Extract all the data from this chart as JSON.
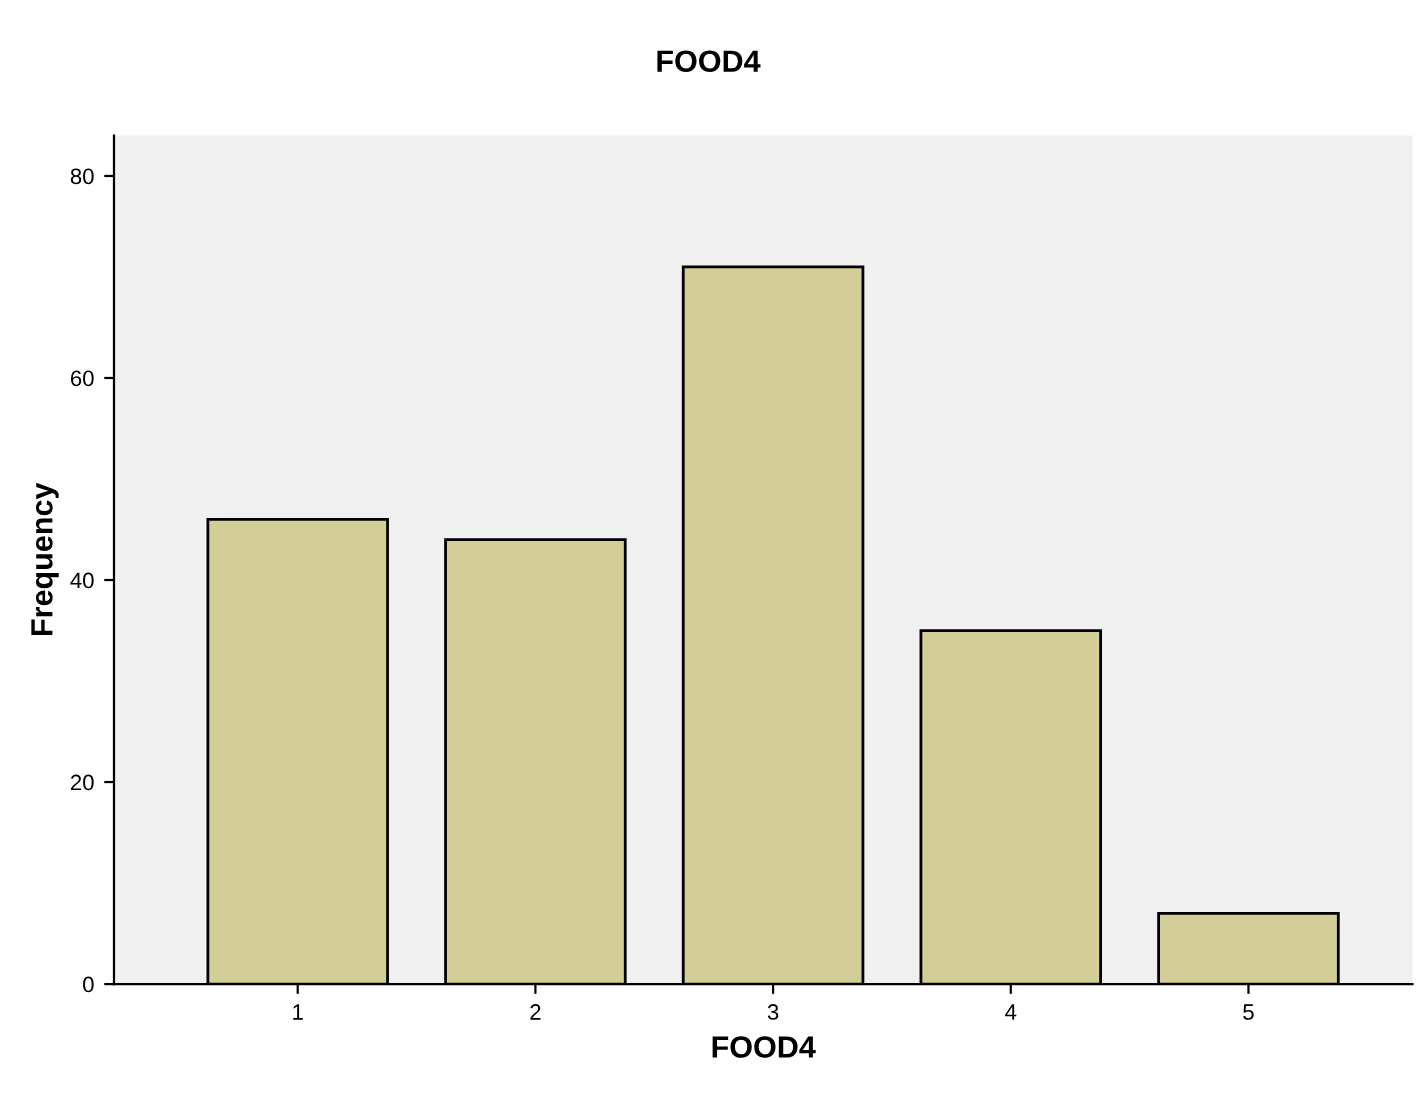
{
  "chart_data": {
    "type": "bar",
    "title": "FOOD4",
    "xlabel": "FOOD4",
    "ylabel": "Frequency",
    "categories": [
      "1",
      "2",
      "3",
      "4",
      "5"
    ],
    "values": [
      46,
      44,
      71,
      35,
      7
    ],
    "color": "#d3ce97",
    "ylim": [
      0,
      84
    ],
    "yticks": [
      0,
      20,
      40,
      60,
      80
    ],
    "grid": false
  }
}
